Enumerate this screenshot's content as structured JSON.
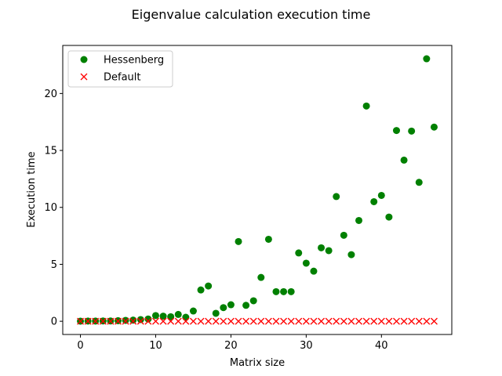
{
  "chart_data": {
    "type": "scatter",
    "title": "Eigenvalue calculation execution time",
    "xlabel": "Matrix size",
    "ylabel": "Execution time",
    "xlim": [
      -2.35,
      49.35
    ],
    "ylim": [
      -1.16,
      24.22
    ],
    "xticks": [
      0,
      10,
      20,
      30,
      40
    ],
    "yticks": [
      0,
      5,
      10,
      15,
      20
    ],
    "legend_position": "upper-left",
    "grid": false,
    "series": [
      {
        "name": "Hessenberg",
        "marker": "circle",
        "color": "#008000",
        "x": [
          0,
          1,
          2,
          3,
          4,
          5,
          6,
          7,
          8,
          9,
          10,
          11,
          12,
          13,
          14,
          15,
          16,
          17,
          18,
          19,
          20,
          21,
          22,
          23,
          24,
          25,
          26,
          27,
          28,
          29,
          30,
          31,
          32,
          33,
          34,
          35,
          36,
          37,
          38,
          39,
          40,
          41,
          42,
          43,
          44,
          45,
          46,
          47
        ],
        "y": [
          0.01,
          0.02,
          0.02,
          0.03,
          0.03,
          0.05,
          0.08,
          0.1,
          0.15,
          0.2,
          0.5,
          0.45,
          0.4,
          0.6,
          0.35,
          0.9,
          2.75,
          3.1,
          0.7,
          1.2,
          1.45,
          7.0,
          1.4,
          1.8,
          3.85,
          7.2,
          2.6,
          2.6,
          2.6,
          6.0,
          5.1,
          4.4,
          6.45,
          6.2,
          10.95,
          7.55,
          5.85,
          8.85,
          18.9,
          10.5,
          11.05,
          9.15,
          16.75,
          14.15,
          16.7,
          12.2,
          23.05,
          17.05
        ]
      },
      {
        "name": "Default",
        "marker": "x",
        "color": "#ff0000",
        "x": [
          0,
          1,
          2,
          3,
          4,
          5,
          6,
          7,
          8,
          9,
          10,
          11,
          12,
          13,
          14,
          15,
          16,
          17,
          18,
          19,
          20,
          21,
          22,
          23,
          24,
          25,
          26,
          27,
          28,
          29,
          30,
          31,
          32,
          33,
          34,
          35,
          36,
          37,
          38,
          39,
          40,
          41,
          42,
          43,
          44,
          45,
          46,
          47
        ],
        "y": [
          0,
          0,
          0,
          0,
          0,
          0,
          0,
          0,
          0,
          0,
          0,
          0,
          0,
          0,
          0,
          0,
          0,
          0,
          0,
          0,
          0,
          0,
          0,
          0,
          0,
          0,
          0,
          0,
          0,
          0,
          0,
          0,
          0,
          0,
          0,
          0,
          0,
          0,
          0,
          0,
          0,
          0,
          0,
          0,
          0,
          0,
          0,
          0
        ]
      }
    ]
  }
}
